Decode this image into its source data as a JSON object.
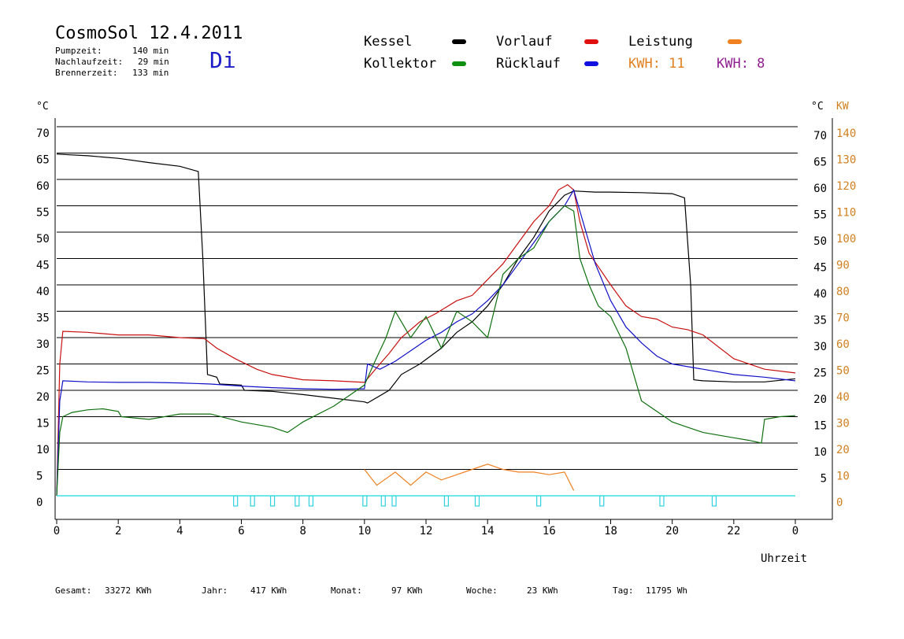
{
  "header": {
    "title": "CosmoSol 12.4.2011",
    "stats": [
      {
        "label": "Pumpzeit:",
        "value": "140 min"
      },
      {
        "label": "Nachlaufzeit:",
        "value": "29 min"
      },
      {
        "label": "Brennerzeit:",
        "value": "133 min"
      }
    ],
    "day": "Di"
  },
  "legend": {
    "kessel": {
      "label": "Kessel",
      "color": "#000000"
    },
    "vorlauf": {
      "label": "Vorlauf",
      "color": "#e01010"
    },
    "leistung": {
      "label": "Leistung",
      "color": "#f08020"
    },
    "kollektor": {
      "label": "Kollektor",
      "color": "#109010"
    },
    "ruecklauf": {
      "label": "Rücklauf",
      "color": "#1010e0"
    },
    "kwh_orange": {
      "label": "KWH: 11",
      "color": "#e08020"
    },
    "kwh_purple": {
      "label": "KWH: 8",
      "color": "#902090"
    }
  },
  "footer": [
    {
      "label": "Gesamt:",
      "value": "33272 KWh"
    },
    {
      "label": "Jahr:",
      "value": "417 KWh"
    },
    {
      "label": "Monat:",
      "value": "97 KWh"
    },
    {
      "label": "Woche:",
      "value": "23 KWh"
    },
    {
      "label": "Tag:",
      "value": "11795 Wh"
    }
  ],
  "chart_data": {
    "type": "line",
    "xlabel": "Uhrzeit",
    "ylabel_left": "°C",
    "ylabel_right_temp": "°C",
    "ylabel_right_power": "KW",
    "xlim": [
      0,
      24
    ],
    "ylim": [
      0,
      70
    ],
    "x_ticks": [
      "0",
      "2",
      "4",
      "6",
      "8",
      "10",
      "12",
      "14",
      "16",
      "18",
      "20",
      "22",
      "0"
    ],
    "y_ticks_left": [
      "0",
      "5",
      "10",
      "15",
      "20",
      "25",
      "30",
      "35",
      "40",
      "45",
      "50",
      "55",
      "60",
      "65",
      "70"
    ],
    "y_ticks_right_temp": [
      "5",
      "10",
      "15",
      "20",
      "25",
      "30",
      "35",
      "40",
      "45",
      "50",
      "55",
      "60",
      "65",
      "70"
    ],
    "y_ticks_right_power": [
      "0",
      "10",
      "20",
      "30",
      "40",
      "50",
      "60",
      "70",
      "80",
      "90",
      "100",
      "110",
      "120",
      "130",
      "140"
    ],
    "grid": true,
    "series": [
      {
        "name": "Kessel",
        "color": "#000000",
        "x": [
          0,
          1,
          2,
          3,
          4,
          4.6,
          4.75,
          4.9,
          5.2,
          5.3,
          6.0,
          6.1,
          7.0,
          8.0,
          10.0,
          10.1,
          10.8,
          11.2,
          11.8,
          12.5,
          13.0,
          13.5,
          14.0,
          14.5,
          15.0,
          15.5,
          16.0,
          16.5,
          16.8,
          17.5,
          18.0,
          19.0,
          20.0,
          20.4,
          20.6,
          20.7,
          21.0,
          22.0,
          23.0,
          24.0
        ],
        "y": [
          64.8,
          64.5,
          64.0,
          63.2,
          62.5,
          61.5,
          45.0,
          23.0,
          22.5,
          21.2,
          21.0,
          20.0,
          19.8,
          19.2,
          17.8,
          17.6,
          20.0,
          23.0,
          25.0,
          28.0,
          31.0,
          33.0,
          36.0,
          40.0,
          45.0,
          49.0,
          54.0,
          57.0,
          57.8,
          57.6,
          57.6,
          57.5,
          57.3,
          56.5,
          40.0,
          22.0,
          21.8,
          21.6,
          21.6,
          22.2
        ]
      },
      {
        "name": "Vorlauf",
        "color": "#c81010",
        "x": [
          0,
          0.1,
          0.2,
          1,
          2,
          3,
          4,
          4.8,
          5.2,
          5.8,
          6.5,
          7.0,
          8.0,
          9.0,
          10.0,
          10.5,
          10.8,
          11.2,
          11.8,
          12.3,
          13.0,
          13.5,
          14.0,
          14.5,
          15.0,
          15.5,
          16.0,
          16.3,
          16.6,
          16.8,
          17.0,
          17.3,
          18.0,
          18.5,
          19.0,
          19.5,
          20.0,
          20.5,
          21.0,
          22.0,
          23.0,
          24.0
        ],
        "y": [
          0,
          25.0,
          31.2,
          31.0,
          30.5,
          30.5,
          30.0,
          29.8,
          28.0,
          26.0,
          24.0,
          23.0,
          22.0,
          21.8,
          21.5,
          25.0,
          27.0,
          30.0,
          33.0,
          34.5,
          37.0,
          38.0,
          41.0,
          44.0,
          48.0,
          52.0,
          55.0,
          58.0,
          59.0,
          58.0,
          52.0,
          46.0,
          40.0,
          36.0,
          34.0,
          33.5,
          32.0,
          31.5,
          30.5,
          26.0,
          24.0,
          23.3
        ]
      },
      {
        "name": "Rücklauf",
        "color": "#1010c8",
        "x": [
          0,
          0.1,
          0.2,
          1,
          2,
          3,
          4,
          5.0,
          6.0,
          7.0,
          8.0,
          9.0,
          10.0,
          10.1,
          10.5,
          11.0,
          11.5,
          12.0,
          12.5,
          13.0,
          13.5,
          14.0,
          14.5,
          15.0,
          15.5,
          16.0,
          16.5,
          16.8,
          17.2,
          17.5,
          18.0,
          18.5,
          19.0,
          19.5,
          20.0,
          21.0,
          22.0,
          23.0,
          24.0
        ],
        "y": [
          0,
          18.0,
          21.8,
          21.6,
          21.5,
          21.5,
          21.4,
          21.2,
          20.8,
          20.5,
          20.3,
          20.2,
          20.3,
          25.0,
          24.0,
          25.5,
          27.5,
          29.5,
          31.0,
          33.0,
          34.5,
          37.0,
          40.0,
          44.0,
          48.0,
          52.0,
          55.0,
          58.0,
          50.0,
          44.0,
          37.0,
          32.0,
          29.0,
          26.5,
          25.0,
          24.0,
          23.0,
          22.5,
          21.8
        ]
      },
      {
        "name": "Kollektor",
        "color": "#107010",
        "x": [
          0,
          0.1,
          0.2,
          0.5,
          1,
          1.5,
          2,
          2.1,
          3,
          4,
          5,
          6,
          7,
          7.5,
          8,
          9,
          9.5,
          10.0,
          10.3,
          10.7,
          11.0,
          11.5,
          12.0,
          12.5,
          13.0,
          13.5,
          14.0,
          14.5,
          15.0,
          15.5,
          16.0,
          16.5,
          16.8,
          17.0,
          17.3,
          17.6,
          18.0,
          18.5,
          19.0,
          19.5,
          20.0,
          20.5,
          21.0,
          22.0,
          22.5,
          22.9,
          23.0,
          23.5,
          24.0
        ],
        "y": [
          0,
          12.0,
          15.0,
          15.8,
          16.3,
          16.5,
          16.0,
          15.0,
          14.5,
          15.5,
          15.5,
          14.0,
          13.0,
          12.0,
          14.0,
          17.0,
          19.0,
          21.0,
          25.0,
          30.0,
          35.0,
          30.0,
          34.0,
          28.0,
          35.0,
          33.0,
          30.0,
          42.0,
          45.0,
          47.0,
          52.0,
          55.0,
          54.0,
          45.0,
          40.0,
          36.0,
          34.0,
          28.0,
          18.0,
          16.0,
          14.0,
          13.0,
          12.0,
          11.0,
          10.5,
          10.0,
          14.5,
          15.0,
          15.2
        ]
      },
      {
        "name": "Leistung",
        "color": "#f08020",
        "x": [
          10.0,
          10.4,
          11.0,
          11.5,
          12.0,
          12.5,
          13.0,
          13.5,
          14.0,
          14.5,
          15.0,
          15.5,
          16.0,
          16.5,
          16.8
        ],
        "y": [
          5.0,
          2.0,
          4.5,
          2.0,
          4.5,
          3.0,
          4.0,
          5.0,
          6.0,
          5.0,
          4.5,
          4.5,
          4.0,
          4.5,
          1.0
        ]
      }
    ],
    "pump_markers_x": [
      5.8,
      6.35,
      7.0,
      7.8,
      8.25,
      10.0,
      10.6,
      10.95,
      12.65,
      13.65,
      15.65,
      17.7,
      19.65,
      21.35
    ]
  }
}
